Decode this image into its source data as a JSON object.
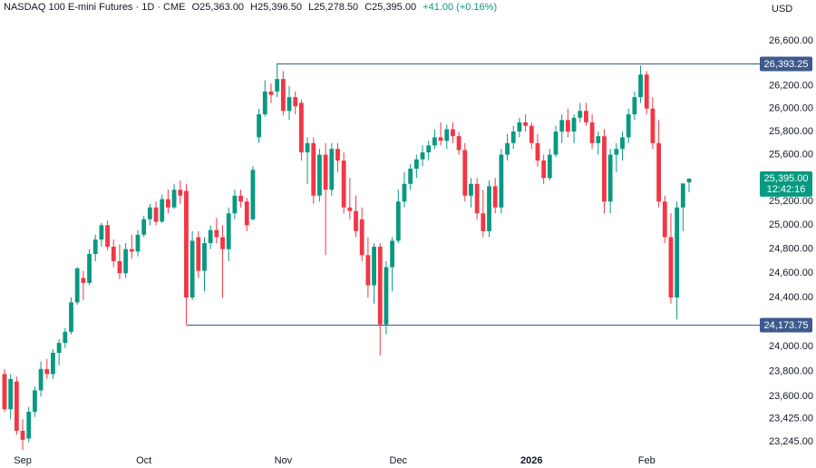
{
  "chart_data": {
    "type": "candlestick",
    "header": {
      "symbol": "NASDAQ 100 E-mini Futures · 1D · CME",
      "ohlc": [
        "O25,363.00",
        "H25,396.50",
        "L25,278.50",
        "C25,395.00"
      ],
      "change": "+41.00 (+0.16%)"
    },
    "currency": "USD",
    "log": true,
    "ylim": [
      23153,
      26967
    ],
    "yticks": [
      {
        "value": 26600,
        "label": "26,600.00"
      },
      {
        "value": 26200,
        "label": "26,200.00"
      },
      {
        "value": 26000,
        "label": "26,000.00"
      },
      {
        "value": 25800,
        "label": "25,800.00"
      },
      {
        "value": 25600,
        "label": "25,600.00"
      },
      {
        "value": 25200,
        "label": "25,200.00"
      },
      {
        "value": 25000,
        "label": "25,000.00"
      },
      {
        "value": 24800,
        "label": "24,800.00"
      },
      {
        "value": 24600,
        "label": "24,600.00"
      },
      {
        "value": 24400,
        "label": "24,400.00"
      },
      {
        "value": 24000,
        "label": "24,000.00"
      },
      {
        "value": 23800,
        "label": "23,800.00"
      },
      {
        "value": 23600,
        "label": "23,600.00"
      },
      {
        "value": 23425,
        "label": "23,425.00"
      },
      {
        "value": 23245,
        "label": "23,245.00"
      }
    ],
    "up_color": "#089981",
    "down_color": "#f23645",
    "level_color": "#3d5a8c",
    "levels": [
      {
        "value": 26393.25,
        "label": "26,393.25"
      },
      {
        "value": 24173.75,
        "label": "24,173.75"
      }
    ],
    "last_price": {
      "value": 25395,
      "label": "25,395.00",
      "countdown": "12:42:16"
    },
    "categories": [
      null,
      null,
      null,
      "Sep",
      null,
      null,
      null,
      null,
      null,
      null,
      null,
      null,
      null,
      null,
      null,
      null,
      null,
      null,
      null,
      null,
      null,
      null,
      null,
      "Oct",
      null,
      null,
      null,
      null,
      null,
      null,
      null,
      null,
      null,
      null,
      null,
      null,
      null,
      null,
      null,
      null,
      null,
      null,
      null,
      null,
      null,
      null,
      "Nov",
      null,
      null,
      null,
      null,
      null,
      null,
      null,
      null,
      null,
      null,
      null,
      null,
      null,
      null,
      null,
      null,
      null,
      null,
      "Dec",
      null,
      null,
      null,
      null,
      null,
      null,
      null,
      null,
      null,
      null,
      null,
      null,
      null,
      null,
      null,
      null,
      null,
      null,
      null,
      null,
      null,
      "2026",
      null,
      null,
      null,
      null,
      null,
      null,
      null,
      null,
      null,
      null,
      null,
      null,
      null,
      null,
      null,
      null,
      null,
      null,
      "Feb",
      null,
      null,
      null,
      null,
      null,
      null,
      null
    ],
    "open": [
      23780,
      23500,
      23720,
      23330,
      23270,
      23480,
      23650,
      23820,
      23780,
      23950,
      24030,
      24120,
      24360,
      24560,
      24520,
      24760,
      24880,
      25000,
      24820,
      24700,
      24600,
      24800,
      24780,
      24920,
      25050,
      25150,
      25030,
      25220,
      25150,
      25300,
      25290,
      24400,
      24900,
      24620,
      24850,
      24960,
      24900,
      24800,
      25100,
      25250,
      25200,
      25050,
      25750,
      25950,
      26150,
      26150,
      26260,
      25980,
      26100,
      26050,
      25620,
      25700,
      25250,
      25600,
      25300,
      25650,
      25550,
      25150,
      25120,
      25050,
      24750,
      24500,
      24820,
      24180,
      24650,
      24870,
      25200,
      25350,
      25480,
      25560,
      25620,
      25680,
      25750,
      25720,
      25820,
      25760,
      25640,
      25250,
      25350,
      25100,
      24950,
      25330,
      25150,
      25600,
      25700,
      25800,
      25880,
      25850,
      25700,
      25550,
      25400,
      25600,
      25800,
      25900,
      25800,
      25920,
      25980,
      25880,
      25700,
      25760,
      25200,
      25600,
      25650,
      25750,
      25950,
      26100,
      26300,
      26000,
      25700,
      25200,
      24900,
      24400,
      25150,
      25363
    ],
    "high": [
      23820,
      23780,
      23760,
      23420,
      23520,
      23680,
      23880,
      23900,
      23980,
      24060,
      24150,
      24400,
      24650,
      24620,
      24800,
      24920,
      25020,
      25040,
      24880,
      24840,
      24850,
      24920,
      24960,
      25080,
      25180,
      25200,
      25260,
      25300,
      25350,
      25380,
      25350,
      24950,
      24950,
      24900,
      25000,
      25060,
      25000,
      25150,
      25300,
      25300,
      25230,
      25500,
      26000,
      26250,
      26220,
      26400,
      26330,
      26200,
      26150,
      26080,
      25750,
      25750,
      25650,
      25700,
      25700,
      25700,
      25620,
      25400,
      25250,
      25150,
      24900,
      24850,
      24850,
      24700,
      24900,
      25300,
      25450,
      25520,
      25600,
      25680,
      25720,
      25820,
      25880,
      25860,
      25880,
      25800,
      25700,
      25400,
      25400,
      25300,
      25380,
      25400,
      25650,
      25780,
      25850,
      25920,
      25950,
      25880,
      25780,
      25600,
      25650,
      25850,
      25950,
      26000,
      25950,
      26050,
      26050,
      25950,
      25800,
      25820,
      25650,
      25700,
      25800,
      26000,
      26150,
      26380,
      26330,
      26100,
      25900,
      25250,
      25100,
      25200,
      25350,
      25396.5
    ],
    "low": [
      23480,
      23420,
      23300,
      23180,
      23240,
      23440,
      23600,
      23740,
      23740,
      23850,
      23990,
      24100,
      24340,
      24380,
      24500,
      24700,
      24820,
      24790,
      24650,
      24550,
      24560,
      24720,
      24740,
      24900,
      25000,
      25000,
      25020,
      25100,
      25140,
      25180,
      24180,
      24380,
      24560,
      24450,
      24800,
      24850,
      24400,
      24700,
      25050,
      25150,
      24950,
      25040,
      25700,
      25930,
      26050,
      26100,
      25940,
      25900,
      25950,
      25550,
      25350,
      25180,
      25200,
      24750,
      25250,
      25450,
      25100,
      25050,
      24900,
      24700,
      24400,
      24350,
      23930,
      24100,
      24450,
      24850,
      25150,
      25300,
      25400,
      25500,
      25550,
      25650,
      25680,
      25650,
      25700,
      25600,
      25200,
      25150,
      25050,
      24900,
      24900,
      25100,
      25100,
      25550,
      25650,
      25750,
      25800,
      25650,
      25500,
      25350,
      25380,
      25580,
      25700,
      25750,
      25700,
      25880,
      25850,
      25650,
      25600,
      25100,
      25100,
      25450,
      25550,
      25700,
      25900,
      26050,
      25950,
      25650,
      25150,
      24850,
      24350,
      24220,
      24950,
      25278.5
    ],
    "close": [
      23500,
      23740,
      23330,
      23260,
      23480,
      23650,
      23820,
      23780,
      23950,
      24030,
      24120,
      24360,
      24640,
      24520,
      24760,
      24880,
      25000,
      24820,
      24700,
      24600,
      24800,
      24780,
      24920,
      25050,
      25150,
      25030,
      25220,
      25150,
      25300,
      25250,
      24400,
      24870,
      24620,
      24850,
      24960,
      24900,
      24800,
      25100,
      25250,
      25200,
      25000,
      25470,
      25950,
      26150,
      26120,
      26260,
      25980,
      26100,
      26020,
      25620,
      25700,
      25250,
      25600,
      25300,
      25650,
      25550,
      25150,
      25120,
      24950,
      24750,
      24500,
      24820,
      24180,
      24650,
      24870,
      25200,
      25350,
      25480,
      25560,
      25620,
      25680,
      25750,
      25720,
      25820,
      25760,
      25640,
      25250,
      25350,
      25100,
      24950,
      25330,
      25150,
      25600,
      25700,
      25800,
      25880,
      25850,
      25700,
      25550,
      25400,
      25600,
      25800,
      25900,
      25800,
      25920,
      25980,
      25880,
      25700,
      25760,
      25200,
      25600,
      25650,
      25750,
      25950,
      26100,
      26300,
      26000,
      25700,
      25200,
      24900,
      24400,
      25150,
      25354,
      25395
    ]
  }
}
